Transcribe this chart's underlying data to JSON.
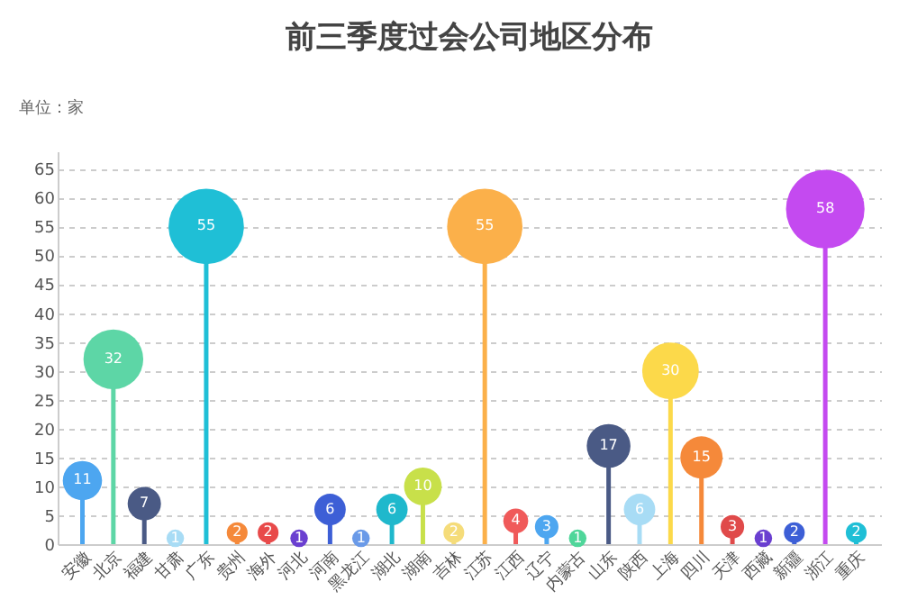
{
  "chart_data": {
    "type": "lollipop",
    "title": "前三季度过会公司地区分布",
    "ylabel": "单位：家",
    "categories": [
      "安徽",
      "北京",
      "福建",
      "甘肃",
      "广东",
      "贵州",
      "海外",
      "河北",
      "河南",
      "黑龙江",
      "湖北",
      "湖南",
      "吉林",
      "江苏",
      "江西",
      "辽宁",
      "内蒙古",
      "山东",
      "陕西",
      "上海",
      "四川",
      "天津",
      "西藏",
      "新疆",
      "浙江",
      "重庆"
    ],
    "values": [
      11,
      32,
      7,
      1,
      55,
      2,
      2,
      1,
      6,
      1,
      6,
      10,
      2,
      55,
      4,
      3,
      1,
      17,
      6,
      30,
      15,
      3,
      1,
      2,
      58,
      2
    ],
    "colors": [
      "#4da6f0",
      "#5dd6a6",
      "#4a5a85",
      "#a8dcf5",
      "#1fbfd6",
      "#f5893a",
      "#e84a4a",
      "#6a3fd0",
      "#3d5fd6",
      "#6a9ae8",
      "#1fb8cc",
      "#c8e04a",
      "#f5dc7a",
      "#fbb04a",
      "#f05a5a",
      "#4da6f0",
      "#4fd69a",
      "#4a5a85",
      "#a8dcf5",
      "#fcd94a",
      "#f5893a",
      "#e04a4a",
      "#6a3fd0",
      "#3d5fd6",
      "#c44af0",
      "#1fbfd6"
    ],
    "sizes": [
      0.25,
      0.58,
      0.18,
      0.05,
      0.92,
      0.07,
      0.07,
      0.05,
      0.16,
      0.05,
      0.16,
      0.23,
      0.07,
      0.92,
      0.1,
      0.09,
      0.05,
      0.31,
      0.16,
      0.52,
      0.29,
      0.09,
      0.05,
      0.07,
      1,
      0.07
    ],
    "ylim": [
      0,
      68
    ],
    "yticks": [
      0,
      5,
      10,
      15,
      20,
      25,
      30,
      35,
      40,
      45,
      50,
      55,
      60,
      65
    ],
    "grid": "y",
    "data_labels": true
  }
}
